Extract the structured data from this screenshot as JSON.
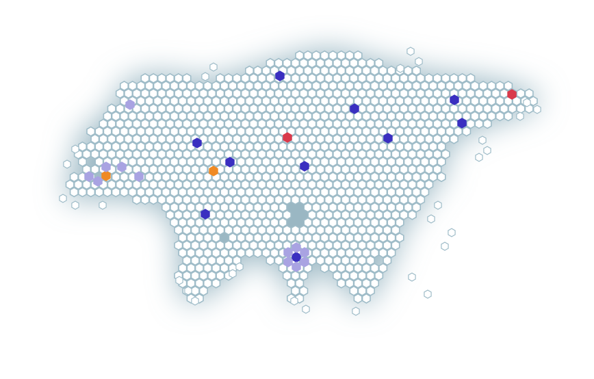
{
  "map": {
    "region": "Eurasia",
    "style": "hexagon-tile-map",
    "colors": {
      "background": "#ffffff",
      "landmass_shadow": "#88aab8",
      "tile_fill": "#ffffff",
      "tile_stroke": "#9fbcc8",
      "marker_dark_blue": "#3a2fc0",
      "marker_light_purple": "#a9a3e2",
      "marker_orange": "#f08a24",
      "marker_red": "#d9394a"
    },
    "marker_legend": [
      {
        "kind": "dark-blue",
        "color": "#3a2fc0"
      },
      {
        "kind": "light-purple",
        "color": "#a9a3e2"
      },
      {
        "kind": "orange",
        "color": "#f08a24"
      },
      {
        "kind": "red",
        "color": "#d9394a"
      }
    ]
  }
}
